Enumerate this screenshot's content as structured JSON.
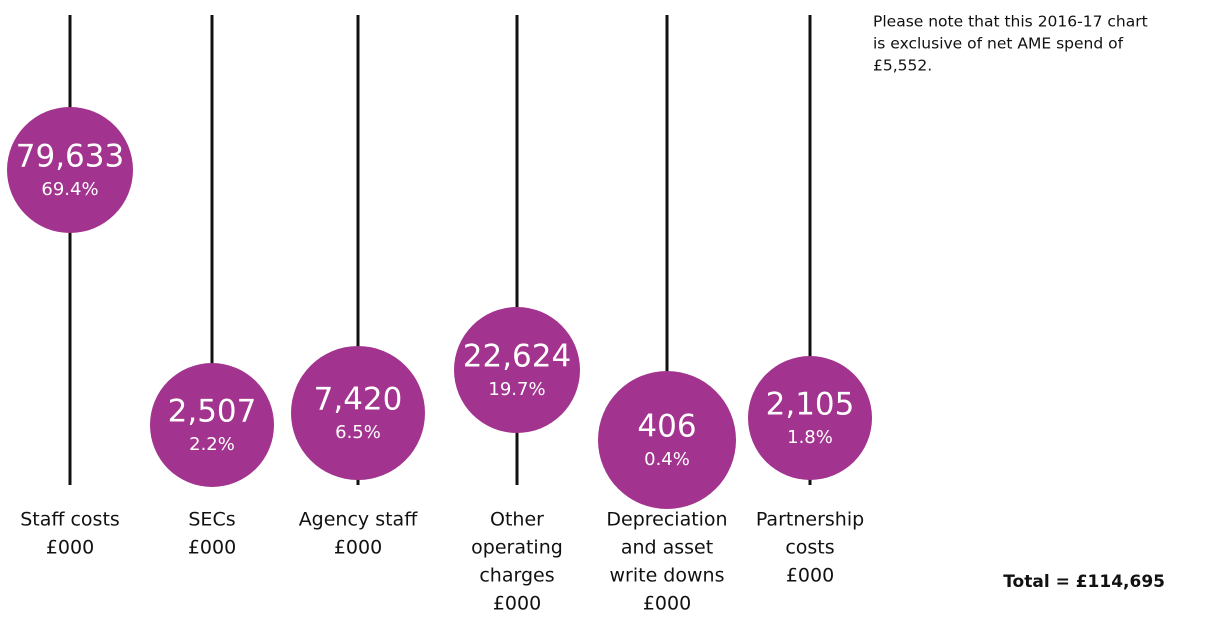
{
  "chart_data": {
    "type": "lollipop",
    "categories": [
      [
        "Staff costs",
        "£000"
      ],
      [
        "SECs",
        "£000"
      ],
      [
        "Agency staff",
        "£000"
      ],
      [
        "Other",
        "operating",
        "charges",
        "£000"
      ],
      [
        "Depreciation",
        "and asset",
        "write downs",
        "£000"
      ],
      [
        "Partnership",
        "costs",
        "£000"
      ]
    ],
    "values": [
      79633,
      2507,
      7420,
      22624,
      406,
      2105
    ],
    "value_labels": [
      "79,633",
      "2,507",
      "7,420",
      "22,624",
      "406",
      "2,105"
    ],
    "shares": [
      69.4,
      2.2,
      6.5,
      19.7,
      0.4,
      1.8
    ],
    "share_labels": [
      "69.4%",
      "2.2%",
      "6.5%",
      "19.7%",
      "0.4%",
      "1.8%"
    ],
    "color": "#a2338e",
    "note": [
      "Please note that this 2016-17 chart",
      "is exclusive of net AME spend of",
      "£5,552."
    ],
    "total": "Total = £114,695"
  }
}
